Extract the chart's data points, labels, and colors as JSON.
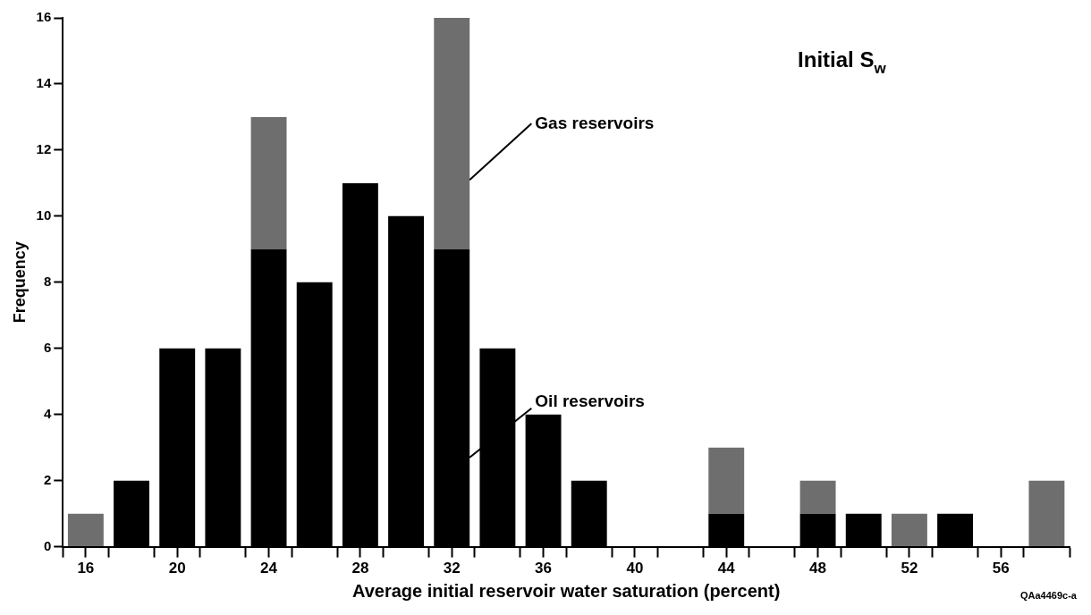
{
  "chart_data": {
    "type": "bar",
    "title": "Initial S$_{w}$",
    "xlabel": "Average initial reservoir water saturation (percent)",
    "ylabel": "Frequency",
    "x": [
      16,
      18,
      20,
      22,
      24,
      26,
      28,
      30,
      32,
      34,
      36,
      38,
      40,
      42,
      44,
      46,
      48,
      50,
      52,
      54,
      56,
      58
    ],
    "series": [
      {
        "name": "Oil reservoirs",
        "color": "#000000",
        "values": [
          0,
          2,
          6,
          6,
          9,
          8,
          11,
          10,
          9,
          6,
          4,
          2,
          0,
          0,
          1,
          0,
          1,
          1,
          0,
          1,
          0,
          0
        ]
      },
      {
        "name": "Gas reservoirs",
        "color": "#6e6e6e",
        "values": [
          1,
          0,
          0,
          0,
          4,
          0,
          0,
          0,
          7,
          0,
          0,
          0,
          0,
          0,
          2,
          0,
          1,
          0,
          1,
          0,
          0,
          2
        ]
      }
    ],
    "stacked": true,
    "xlim": [
      15,
      59
    ],
    "xticks": [
      {
        "value": 15,
        "label": null
      },
      16,
      {
        "value": 17,
        "label": null
      },
      {
        "value": 19,
        "label": null
      },
      20,
      {
        "value": 21,
        "label": null
      },
      {
        "value": 23,
        "label": null
      },
      24,
      {
        "value": 25,
        "label": null
      },
      {
        "value": 27,
        "label": null
      },
      28,
      {
        "value": 29,
        "label": null
      },
      {
        "value": 31,
        "label": null
      },
      32,
      {
        "value": 33,
        "label": null
      },
      {
        "value": 35,
        "label": null
      },
      36,
      {
        "value": 37,
        "label": null
      },
      {
        "value": 39,
        "label": null
      },
      40,
      {
        "value": 41,
        "label": null
      },
      {
        "value": 43,
        "label": null
      },
      44,
      {
        "value": 45,
        "label": null
      },
      {
        "value": 47,
        "label": null
      },
      48,
      {
        "value": 49,
        "label": null
      },
      {
        "value": 51,
        "label": null
      },
      52,
      {
        "value": 53,
        "label": null
      },
      {
        "value": 55,
        "label": null
      },
      56,
      {
        "value": 57,
        "label": null
      },
      {
        "value": 59,
        "label": null
      }
    ],
    "ylim": [
      0,
      16
    ],
    "yticks": [
      0,
      2,
      4,
      6,
      8,
      10,
      12,
      14,
      16
    ],
    "grid": false,
    "legend": false,
    "annotations": [
      "QAa4469c-a"
    ]
  }
}
